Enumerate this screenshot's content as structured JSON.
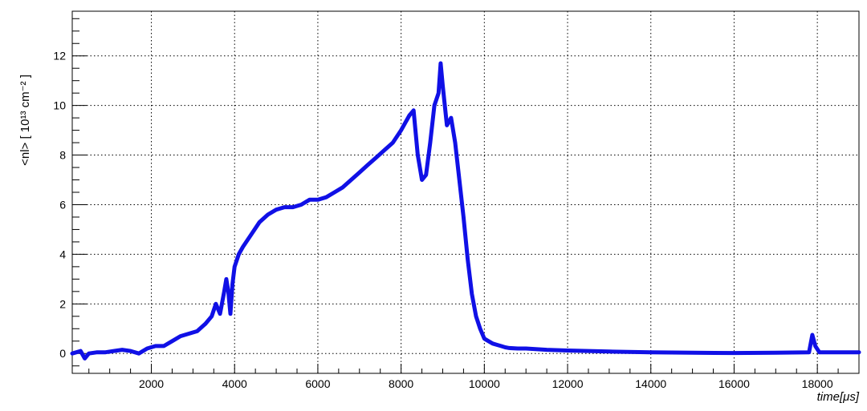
{
  "chart_data": {
    "type": "line",
    "xlabel": "time[μs]",
    "ylabel": "<nl> [ 10¹³ cm⁻² ]",
    "xlim": [
      100,
      19000
    ],
    "ylim": [
      -0.8,
      13.8
    ],
    "xticks": [
      2000,
      4000,
      6000,
      8000,
      10000,
      12000,
      14000,
      16000,
      18000
    ],
    "yticks": [
      0,
      2,
      4,
      6,
      8,
      10,
      12
    ],
    "grid": true,
    "series": [
      {
        "color": "#1010e6",
        "x": [
          100,
          200,
          300,
          400,
          500,
          700,
          900,
          1100,
          1300,
          1500,
          1700,
          1900,
          2100,
          2300,
          2500,
          2700,
          2900,
          3100,
          3300,
          3450,
          3550,
          3650,
          3750,
          3800,
          3850,
          3900,
          3950,
          4000,
          4100,
          4200,
          4400,
          4600,
          4800,
          5000,
          5200,
          5400,
          5600,
          5800,
          6000,
          6200,
          6400,
          6600,
          6800,
          7000,
          7200,
          7400,
          7600,
          7800,
          8000,
          8200,
          8300,
          8400,
          8500,
          8600,
          8700,
          8800,
          8900,
          8950,
          9000,
          9100,
          9200,
          9300,
          9400,
          9500,
          9600,
          9700,
          9800,
          9900,
          10000,
          10100,
          10200,
          10300,
          10400,
          10500,
          10600,
          10800,
          11000,
          11500,
          12000,
          13000,
          14000,
          15000,
          16000,
          17000,
          17800,
          17880,
          17950,
          18050,
          18500,
          19000
        ],
        "y": [
          0.0,
          0.05,
          0.1,
          -0.2,
          0.0,
          0.05,
          0.05,
          0.1,
          0.15,
          0.1,
          0.0,
          0.2,
          0.3,
          0.3,
          0.5,
          0.7,
          0.8,
          0.9,
          1.2,
          1.5,
          2.0,
          1.6,
          2.5,
          3.0,
          2.5,
          1.6,
          2.8,
          3.5,
          4.0,
          4.3,
          4.8,
          5.3,
          5.6,
          5.8,
          5.9,
          5.9,
          6.0,
          6.2,
          6.2,
          6.3,
          6.5,
          6.7,
          7.0,
          7.3,
          7.6,
          7.9,
          8.2,
          8.5,
          9.0,
          9.6,
          9.8,
          8.0,
          7.0,
          7.2,
          8.5,
          10.0,
          10.5,
          11.7,
          10.8,
          9.2,
          9.5,
          8.5,
          7.0,
          5.5,
          3.8,
          2.4,
          1.5,
          1.0,
          0.6,
          0.5,
          0.4,
          0.35,
          0.3,
          0.25,
          0.22,
          0.2,
          0.2,
          0.15,
          0.12,
          0.08,
          0.05,
          0.03,
          0.02,
          0.03,
          0.05,
          0.75,
          0.3,
          0.05,
          0.05,
          0.05
        ]
      }
    ]
  }
}
